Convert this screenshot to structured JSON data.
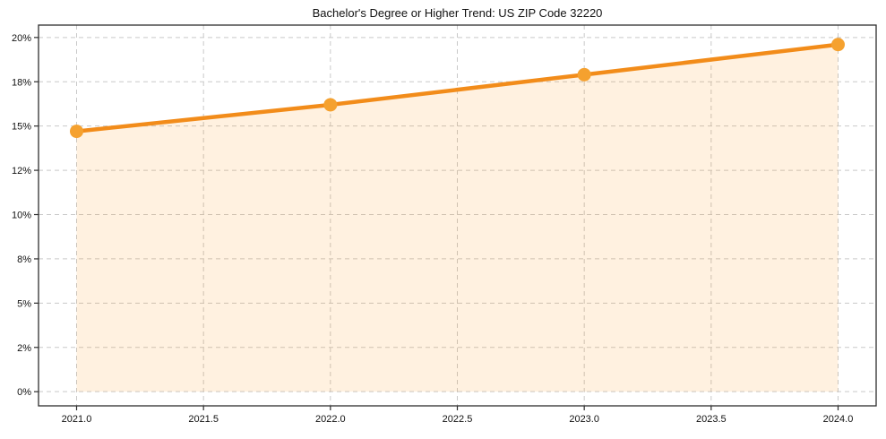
{
  "chart_data": {
    "type": "area",
    "title": "Bachelor's Degree or Higher Trend: US ZIP Code 32220",
    "xlabel": "",
    "ylabel": "",
    "x": [
      2021,
      2022,
      2023,
      2024
    ],
    "values": [
      14.7,
      16.2,
      17.9,
      19.6
    ],
    "value_unit": "%",
    "x_ticks": {
      "values": [
        2021,
        2021.5,
        2022,
        2022.5,
        2023,
        2023.5,
        2024
      ],
      "labels": [
        "2021.0",
        "2021.5",
        "2022.0",
        "2022.5",
        "2023.0",
        "2023.5",
        "2024.0"
      ]
    },
    "y_ticks": {
      "values": [
        0,
        2.5,
        5,
        7.5,
        10,
        12.5,
        15,
        17.5,
        20
      ],
      "labels": [
        "0%",
        "2%",
        "5%",
        "8%",
        "10%",
        "12%",
        "15%",
        "18%",
        "20%"
      ]
    },
    "xlim": [
      2020.85,
      2024.15
    ],
    "ylim": [
      -0.8,
      20.7
    ],
    "fill_baseline": 0,
    "grid": true,
    "grid_style": "dashed",
    "legend": "none",
    "colors": {
      "line": "#f28c1a",
      "marker": "#f5a12f",
      "fill": "#ff8c00",
      "fill_opacity": 0.12,
      "grid": "#c9c9c9",
      "axis": "#2e2e2e",
      "text": "#111111",
      "background": "#ffffff"
    }
  }
}
